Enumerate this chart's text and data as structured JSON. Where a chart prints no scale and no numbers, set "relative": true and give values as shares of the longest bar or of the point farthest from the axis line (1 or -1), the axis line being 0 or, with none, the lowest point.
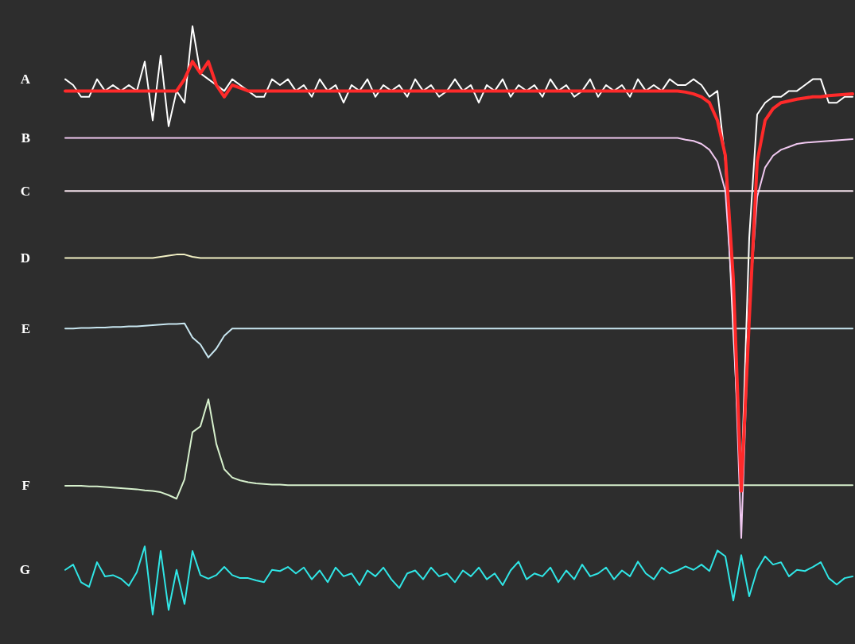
{
  "chart_data": {
    "type": "line",
    "relative": true,
    "legend": false,
    "marker": "none",
    "categories": [
      null,
      null,
      null,
      null,
      null,
      null,
      null,
      null,
      null,
      null,
      null,
      null,
      null,
      null,
      null,
      null,
      null,
      null,
      null,
      null,
      null,
      null,
      null,
      null,
      null,
      null,
      null,
      null,
      null,
      null,
      null,
      null,
      null,
      null,
      null,
      null,
      null,
      null,
      null,
      null,
      null,
      null,
      null,
      null,
      null,
      null,
      null,
      null,
      null,
      null,
      null,
      null,
      null,
      null,
      null,
      null,
      null,
      null,
      null,
      null,
      null,
      null,
      null,
      null,
      null,
      null,
      null,
      null,
      null,
      null,
      null,
      null,
      null,
      null,
      null,
      null,
      null,
      null,
      null,
      null,
      null,
      null,
      null,
      null,
      null,
      null,
      null,
      null,
      null,
      null,
      null,
      null,
      null,
      null,
      null,
      null,
      null,
      null,
      null,
      null
    ],
    "series": [
      {
        "name": "A",
        "color": "#ffffff",
        "values": [
          0.91,
          0.9,
          0.88,
          0.88,
          0.91,
          0.89,
          0.9,
          0.89,
          0.9,
          0.89,
          0.94,
          0.84,
          0.95,
          0.83,
          0.89,
          0.87,
          1,
          0.92,
          0.91,
          0.9,
          0.89,
          0.91,
          0.9,
          0.89,
          0.88,
          0.88,
          0.91,
          0.9,
          0.91,
          0.89,
          0.9,
          0.88,
          0.91,
          0.89,
          0.9,
          0.87,
          0.9,
          0.89,
          0.91,
          0.88,
          0.9,
          0.89,
          0.9,
          0.88,
          0.91,
          0.89,
          0.9,
          0.88,
          0.89,
          0.91,
          0.89,
          0.9,
          0.87,
          0.9,
          0.89,
          0.91,
          0.88,
          0.9,
          0.89,
          0.9,
          0.88,
          0.91,
          0.89,
          0.9,
          0.88,
          0.89,
          0.91,
          0.88,
          0.9,
          0.89,
          0.9,
          0.88,
          0.91,
          0.89,
          0.9,
          0.89,
          0.91,
          0.9,
          0.9,
          0.91,
          0.9,
          0.88,
          0.89,
          0.77,
          0.48,
          0.22,
          0.64,
          0.85,
          0.87,
          0.88,
          0.88,
          0.89,
          0.89,
          0.9,
          0.91,
          0.91,
          0.87,
          0.87,
          0.88,
          0.88
        ]
      },
      {
        "color": "#ff2a2a",
        "values": [
          0.89,
          0.89,
          0.89,
          0.89,
          0.89,
          0.89,
          0.89,
          0.89,
          0.89,
          0.89,
          0.89,
          0.89,
          0.89,
          0.89,
          0.89,
          0.91,
          0.94,
          0.92,
          0.94,
          0.9,
          0.88,
          0.9,
          0.895,
          0.89,
          0.89,
          0.89,
          0.89,
          0.89,
          0.89,
          0.89,
          0.89,
          0.89,
          0.89,
          0.89,
          0.89,
          0.89,
          0.89,
          0.89,
          0.89,
          0.89,
          0.89,
          0.89,
          0.89,
          0.89,
          0.89,
          0.89,
          0.89,
          0.89,
          0.89,
          0.89,
          0.89,
          0.89,
          0.89,
          0.89,
          0.89,
          0.89,
          0.89,
          0.89,
          0.89,
          0.89,
          0.89,
          0.89,
          0.89,
          0.89,
          0.89,
          0.89,
          0.89,
          0.89,
          0.89,
          0.89,
          0.89,
          0.89,
          0.89,
          0.89,
          0.89,
          0.89,
          0.89,
          0.89,
          0.888,
          0.885,
          0.88,
          0.87,
          0.84,
          0.78,
          0.57,
          0.21,
          0.5,
          0.77,
          0.84,
          0.86,
          0.87,
          0.873,
          0.876,
          0.878,
          0.88,
          0.88,
          0.882,
          0.883,
          0.884,
          0.885
        ]
      },
      {
        "name": "B",
        "color": "#f0c8f0",
        "values": [
          0.81,
          0.81,
          0.81,
          0.81,
          0.81,
          0.81,
          0.81,
          0.81,
          0.81,
          0.81,
          0.81,
          0.81,
          0.81,
          0.81,
          0.81,
          0.81,
          0.81,
          0.81,
          0.81,
          0.81,
          0.81,
          0.81,
          0.81,
          0.81,
          0.81,
          0.81,
          0.81,
          0.81,
          0.81,
          0.81,
          0.81,
          0.81,
          0.81,
          0.81,
          0.81,
          0.81,
          0.81,
          0.81,
          0.81,
          0.81,
          0.81,
          0.81,
          0.81,
          0.81,
          0.81,
          0.81,
          0.81,
          0.81,
          0.81,
          0.81,
          0.81,
          0.81,
          0.81,
          0.81,
          0.81,
          0.81,
          0.81,
          0.81,
          0.81,
          0.81,
          0.81,
          0.81,
          0.81,
          0.81,
          0.81,
          0.81,
          0.81,
          0.81,
          0.81,
          0.81,
          0.81,
          0.81,
          0.81,
          0.81,
          0.81,
          0.81,
          0.81,
          0.81,
          0.807,
          0.805,
          0.8,
          0.79,
          0.77,
          0.72,
          0.52,
          0.13,
          0.52,
          0.71,
          0.76,
          0.78,
          0.79,
          0.795,
          0.8,
          0.802,
          0.803,
          0.804,
          0.805,
          0.806,
          0.807,
          0.808
        ]
      },
      {
        "name": "C",
        "color": "#f8e4ee",
        "values": [
          0.72,
          0.72,
          0.72,
          0.72,
          0.72,
          0.72,
          0.72,
          0.72,
          0.72,
          0.72,
          0.72,
          0.72,
          0.72,
          0.72,
          0.72,
          0.72,
          0.72,
          0.72,
          0.72,
          0.72,
          0.72,
          0.72,
          0.72,
          0.72,
          0.72,
          0.72,
          0.72,
          0.72,
          0.72,
          0.72,
          0.72,
          0.72,
          0.72,
          0.72,
          0.72,
          0.72,
          0.72,
          0.72,
          0.72,
          0.72,
          0.72,
          0.72,
          0.72,
          0.72,
          0.72,
          0.72,
          0.72,
          0.72,
          0.72,
          0.72,
          0.72,
          0.72,
          0.72,
          0.72,
          0.72,
          0.72,
          0.72,
          0.72,
          0.72,
          0.72,
          0.72,
          0.72,
          0.72,
          0.72,
          0.72,
          0.72,
          0.72,
          0.72,
          0.72,
          0.72,
          0.72,
          0.72,
          0.72,
          0.72,
          0.72,
          0.72,
          0.72,
          0.72,
          0.72,
          0.72,
          0.72,
          0.72,
          0.72,
          0.72,
          0.72,
          0.72,
          0.72,
          0.72,
          0.72,
          0.72,
          0.72,
          0.72,
          0.72,
          0.72,
          0.72,
          0.72,
          0.72,
          0.72,
          0.72,
          0.72
        ]
      },
      {
        "name": "D",
        "color": "#f2f0c4",
        "values": [
          0.606,
          0.606,
          0.606,
          0.606,
          0.606,
          0.606,
          0.606,
          0.606,
          0.606,
          0.606,
          0.606,
          0.606,
          0.608,
          0.61,
          0.612,
          0.612,
          0.608,
          0.606,
          0.606,
          0.606,
          0.606,
          0.606,
          0.606,
          0.606,
          0.606,
          0.606,
          0.606,
          0.606,
          0.606,
          0.606,
          0.606,
          0.606,
          0.606,
          0.606,
          0.606,
          0.606,
          0.606,
          0.606,
          0.606,
          0.606,
          0.606,
          0.606,
          0.606,
          0.606,
          0.606,
          0.606,
          0.606,
          0.606,
          0.606,
          0.606,
          0.606,
          0.606,
          0.606,
          0.606,
          0.606,
          0.606,
          0.606,
          0.606,
          0.606,
          0.606,
          0.606,
          0.606,
          0.606,
          0.606,
          0.606,
          0.606,
          0.606,
          0.606,
          0.606,
          0.606,
          0.606,
          0.606,
          0.606,
          0.606,
          0.606,
          0.606,
          0.606,
          0.606,
          0.606,
          0.606,
          0.606,
          0.606,
          0.606,
          0.606,
          0.606,
          0.606,
          0.606,
          0.606,
          0.606,
          0.606,
          0.606,
          0.606,
          0.606,
          0.606,
          0.606,
          0.606,
          0.606,
          0.606,
          0.606,
          0.606
        ]
      },
      {
        "name": "E",
        "color": "#c8e6f0",
        "values": [
          0.486,
          0.486,
          0.487,
          0.487,
          0.488,
          0.488,
          0.489,
          0.489,
          0.49,
          0.49,
          0.491,
          0.492,
          0.493,
          0.494,
          0.494,
          0.495,
          0.471,
          0.459,
          0.437,
          0.452,
          0.474,
          0.486,
          0.486,
          0.486,
          0.486,
          0.486,
          0.486,
          0.486,
          0.486,
          0.486,
          0.486,
          0.486,
          0.486,
          0.486,
          0.486,
          0.486,
          0.486,
          0.486,
          0.486,
          0.486,
          0.486,
          0.486,
          0.486,
          0.486,
          0.486,
          0.486,
          0.486,
          0.486,
          0.486,
          0.486,
          0.486,
          0.486,
          0.486,
          0.486,
          0.486,
          0.486,
          0.486,
          0.486,
          0.486,
          0.486,
          0.486,
          0.486,
          0.486,
          0.486,
          0.486,
          0.486,
          0.486,
          0.486,
          0.486,
          0.486,
          0.486,
          0.486,
          0.486,
          0.486,
          0.486,
          0.486,
          0.486,
          0.486,
          0.486,
          0.486,
          0.486,
          0.486,
          0.486,
          0.486,
          0.486,
          0.486,
          0.486,
          0.486,
          0.486,
          0.486,
          0.486,
          0.486,
          0.486,
          0.486,
          0.486,
          0.486,
          0.486,
          0.486,
          0.486,
          0.486
        ]
      },
      {
        "name": "F",
        "color": "#d6f0cc",
        "values": [
          0.219,
          0.219,
          0.219,
          0.218,
          0.218,
          0.217,
          0.216,
          0.215,
          0.214,
          0.213,
          0.211,
          0.21,
          0.208,
          0.203,
          0.197,
          0.23,
          0.31,
          0.32,
          0.366,
          0.29,
          0.247,
          0.233,
          0.228,
          0.225,
          0.223,
          0.222,
          0.221,
          0.221,
          0.22,
          0.22,
          0.22,
          0.22,
          0.22,
          0.22,
          0.22,
          0.22,
          0.22,
          0.22,
          0.22,
          0.22,
          0.22,
          0.22,
          0.22,
          0.22,
          0.22,
          0.22,
          0.22,
          0.22,
          0.22,
          0.22,
          0.22,
          0.22,
          0.22,
          0.22,
          0.22,
          0.22,
          0.22,
          0.22,
          0.22,
          0.22,
          0.22,
          0.22,
          0.22,
          0.22,
          0.22,
          0.22,
          0.22,
          0.22,
          0.22,
          0.22,
          0.22,
          0.22,
          0.22,
          0.22,
          0.22,
          0.22,
          0.22,
          0.22,
          0.22,
          0.22,
          0.22,
          0.22,
          0.22,
          0.22,
          0.22,
          0.22,
          0.22,
          0.22,
          0.22,
          0.22,
          0.22,
          0.22,
          0.22,
          0.22,
          0.22,
          0.22,
          0.22,
          0.22,
          0.22,
          0.22
        ]
      },
      {
        "name": "G",
        "color": "#30e6e6",
        "values": [
          0.076,
          0.085,
          0.055,
          0.047,
          0.089,
          0.065,
          0.067,
          0.061,
          0.049,
          0.072,
          0.116,
          0,
          0.108,
          0.008,
          0.076,
          0.018,
          0.108,
          0.067,
          0.061,
          0.067,
          0.081,
          0.067,
          0.062,
          0.062,
          0.058,
          0.055,
          0.076,
          0.074,
          0.081,
          0.07,
          0.08,
          0.06,
          0.075,
          0.055,
          0.08,
          0.065,
          0.07,
          0.05,
          0.075,
          0.065,
          0.08,
          0.06,
          0.045,
          0.07,
          0.075,
          0.06,
          0.08,
          0.065,
          0.07,
          0.055,
          0.075,
          0.065,
          0.08,
          0.06,
          0.07,
          0.05,
          0.075,
          0.09,
          0.06,
          0.07,
          0.065,
          0.08,
          0.055,
          0.075,
          0.06,
          0.085,
          0.065,
          0.07,
          0.08,
          0.06,
          0.075,
          0.065,
          0.09,
          0.07,
          0.06,
          0.08,
          0.07,
          0.075,
          0.082,
          0.076,
          0.085,
          0.074,
          0.109,
          0.099,
          0.024,
          0.101,
          0.031,
          0.076,
          0.099,
          0.085,
          0.089,
          0.065,
          0.076,
          0.074,
          0.081,
          0.089,
          0.062,
          0.051,
          0.062,
          0.065
        ]
      }
    ]
  }
}
